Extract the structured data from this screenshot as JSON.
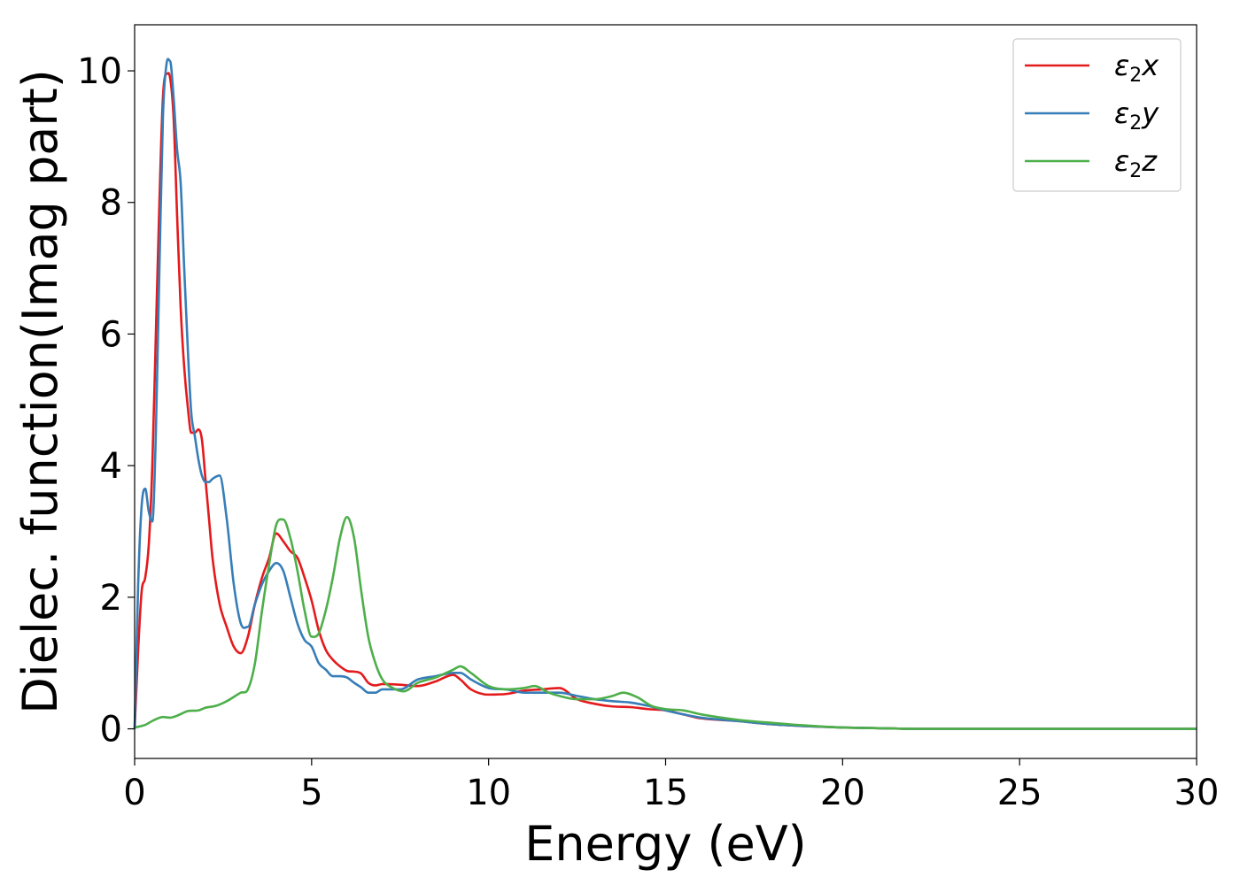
{
  "chart_data": {
    "type": "line",
    "title": "",
    "xlabel": "Energy (eV)",
    "ylabel": "Dielec. function(Imag part)",
    "xlim": [
      0,
      30
    ],
    "ylim": [
      -0.45,
      10.7
    ],
    "xticks": [
      0,
      5,
      10,
      15,
      20,
      25,
      30
    ],
    "yticks": [
      0,
      2,
      4,
      6,
      8,
      10
    ],
    "grid": false,
    "legend_position": "top-right",
    "series": [
      {
        "name": "ε₂x",
        "label_base": "ε",
        "label_sub": "2",
        "label_suffix": "x",
        "color": "#e41a1c",
        "x": [
          0,
          0.1,
          0.2,
          0.3,
          0.4,
          0.5,
          0.6,
          0.7,
          0.8,
          0.9,
          1.0,
          1.1,
          1.2,
          1.3,
          1.4,
          1.5,
          1.6,
          1.7,
          1.8,
          1.9,
          2.0,
          2.1,
          2.2,
          2.4,
          2.6,
          2.8,
          3.0,
          3.2,
          3.4,
          3.6,
          3.8,
          4.0,
          4.2,
          4.4,
          4.6,
          4.8,
          5.0,
          5.2,
          5.4,
          5.6,
          5.8,
          6.0,
          6.2,
          6.4,
          6.6,
          6.8,
          7.0,
          7.5,
          8.0,
          8.5,
          9.0,
          9.2,
          9.5,
          10.0,
          10.5,
          11.0,
          11.5,
          12.0,
          12.5,
          13.0,
          13.5,
          14.0,
          14.5,
          15.0,
          15.5,
          16.0,
          17.0,
          18.0,
          19.0,
          20.0,
          21.0,
          22.0,
          25.0,
          30.0
        ],
        "values": [
          0.0,
          1.2,
          2.1,
          2.3,
          2.8,
          4.0,
          6.0,
          8.0,
          9.6,
          9.95,
          9.9,
          9.3,
          7.8,
          6.4,
          5.5,
          4.9,
          4.5,
          4.5,
          4.55,
          4.4,
          3.8,
          3.2,
          2.6,
          1.9,
          1.55,
          1.25,
          1.15,
          1.4,
          1.9,
          2.3,
          2.6,
          2.97,
          2.85,
          2.7,
          2.6,
          2.3,
          1.95,
          1.5,
          1.2,
          1.05,
          0.95,
          0.88,
          0.87,
          0.84,
          0.7,
          0.66,
          0.68,
          0.67,
          0.65,
          0.72,
          0.82,
          0.75,
          0.6,
          0.52,
          0.53,
          0.58,
          0.6,
          0.62,
          0.45,
          0.38,
          0.34,
          0.33,
          0.3,
          0.28,
          0.22,
          0.16,
          0.12,
          0.07,
          0.04,
          0.02,
          0.01,
          0.0,
          0.0,
          0.0
        ]
      },
      {
        "name": "ε₂y",
        "label_base": "ε",
        "label_sub": "2",
        "label_suffix": "y",
        "color": "#377eb8",
        "x": [
          0,
          0.1,
          0.2,
          0.3,
          0.4,
          0.5,
          0.6,
          0.7,
          0.8,
          0.9,
          1.0,
          1.1,
          1.2,
          1.3,
          1.4,
          1.5,
          1.6,
          1.7,
          1.8,
          1.9,
          2.0,
          2.1,
          2.2,
          2.4,
          2.6,
          2.8,
          3.0,
          3.2,
          3.4,
          3.6,
          3.8,
          4.0,
          4.2,
          4.4,
          4.6,
          4.8,
          5.0,
          5.2,
          5.4,
          5.6,
          5.8,
          6.0,
          6.2,
          6.4,
          6.6,
          6.8,
          7.0,
          7.5,
          8.0,
          8.5,
          9.0,
          9.2,
          9.5,
          10.0,
          10.5,
          11.0,
          11.5,
          12.0,
          12.5,
          13.0,
          13.5,
          14.0,
          14.5,
          15.0,
          15.5,
          16.0,
          17.0,
          18.0,
          19.0,
          20.0,
          21.0,
          22.0,
          25.0,
          30.0
        ],
        "values": [
          0.0,
          2.2,
          3.4,
          3.65,
          3.3,
          3.15,
          4.5,
          7.0,
          9.3,
          10.1,
          10.15,
          9.6,
          8.8,
          8.3,
          7.0,
          5.8,
          4.8,
          4.45,
          4.1,
          3.85,
          3.75,
          3.75,
          3.8,
          3.85,
          3.2,
          2.2,
          1.6,
          1.55,
          1.9,
          2.2,
          2.4,
          2.52,
          2.4,
          2.0,
          1.6,
          1.35,
          1.25,
          1.0,
          0.9,
          0.8,
          0.8,
          0.78,
          0.7,
          0.63,
          0.55,
          0.55,
          0.6,
          0.6,
          0.75,
          0.8,
          0.85,
          0.85,
          0.75,
          0.62,
          0.6,
          0.55,
          0.55,
          0.55,
          0.5,
          0.45,
          0.42,
          0.4,
          0.35,
          0.28,
          0.22,
          0.17,
          0.12,
          0.07,
          0.04,
          0.02,
          0.01,
          0.0,
          0.0,
          0.0
        ]
      },
      {
        "name": "ε₂z",
        "label_base": "ε",
        "label_sub": "2",
        "label_suffix": "z",
        "color": "#4daf4a",
        "x": [
          0,
          0.3,
          0.5,
          0.8,
          1.0,
          1.2,
          1.5,
          1.8,
          2.0,
          2.3,
          2.6,
          3.0,
          3.2,
          3.4,
          3.6,
          3.8,
          4.0,
          4.2,
          4.4,
          4.6,
          4.8,
          5.0,
          5.2,
          5.4,
          5.6,
          5.8,
          6.0,
          6.2,
          6.4,
          6.6,
          6.8,
          7.0,
          7.3,
          7.6,
          8.0,
          8.5,
          9.0,
          9.2,
          9.5,
          10.0,
          10.5,
          11.0,
          11.3,
          11.7,
          12.0,
          12.5,
          13.0,
          13.5,
          13.8,
          14.2,
          14.6,
          15.0,
          15.5,
          16.0,
          17.0,
          18.0,
          19.0,
          20.0,
          21.0,
          22.0,
          25.0,
          30.0
        ],
        "values": [
          0.02,
          0.06,
          0.12,
          0.18,
          0.17,
          0.2,
          0.27,
          0.28,
          0.32,
          0.35,
          0.42,
          0.55,
          0.6,
          1.0,
          1.8,
          2.5,
          3.1,
          3.18,
          2.9,
          2.4,
          1.8,
          1.4,
          1.45,
          1.8,
          2.3,
          2.9,
          3.22,
          2.9,
          2.1,
          1.4,
          1.0,
          0.75,
          0.62,
          0.57,
          0.7,
          0.78,
          0.9,
          0.95,
          0.85,
          0.65,
          0.6,
          0.62,
          0.65,
          0.55,
          0.5,
          0.45,
          0.45,
          0.5,
          0.55,
          0.48,
          0.35,
          0.3,
          0.28,
          0.22,
          0.14,
          0.09,
          0.05,
          0.02,
          0.01,
          0.0,
          0.0,
          0.0
        ]
      }
    ]
  }
}
